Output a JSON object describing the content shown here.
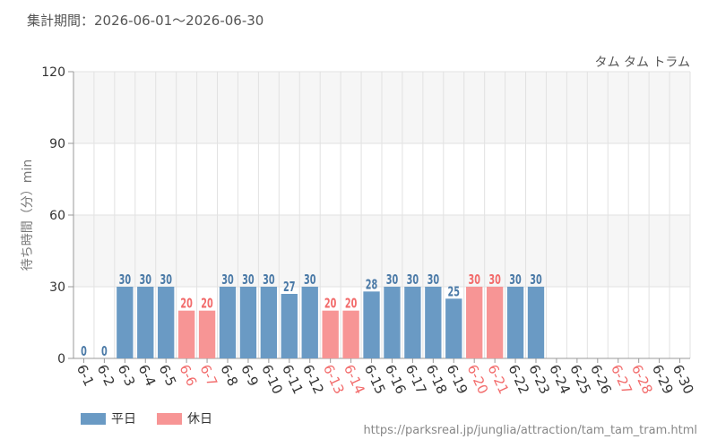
{
  "header": {
    "period_label": "集計期間：2026-06-01～2026-06-30"
  },
  "chart_data": {
    "type": "bar",
    "title": "タム タム トラム",
    "ylabel": "待ち時間（分）min",
    "ylim": [
      0,
      120
    ],
    "yticks": [
      0,
      30,
      60,
      90,
      120
    ],
    "grid": true,
    "categories": [
      "6-1",
      "6-2",
      "6-3",
      "6-4",
      "6-5",
      "6-6",
      "6-7",
      "6-8",
      "6-9",
      "6-10",
      "6-11",
      "6-12",
      "6-13",
      "6-14",
      "6-15",
      "6-16",
      "6-17",
      "6-18",
      "6-19",
      "6-20",
      "6-21",
      "6-22",
      "6-23",
      "6-24",
      "6-25",
      "6-26",
      "6-27",
      "6-28",
      "6-29",
      "6-30"
    ],
    "values": [
      0,
      0,
      30,
      30,
      30,
      20,
      20,
      30,
      30,
      30,
      27,
      30,
      20,
      20,
      28,
      30,
      30,
      30,
      25,
      30,
      30,
      30,
      30,
      null,
      null,
      null,
      null,
      null,
      null,
      null
    ],
    "holiday": [
      false,
      false,
      false,
      false,
      false,
      true,
      true,
      false,
      false,
      false,
      false,
      false,
      true,
      true,
      false,
      false,
      false,
      false,
      false,
      true,
      true,
      false,
      false,
      false,
      false,
      false,
      true,
      true,
      false,
      false
    ],
    "legend": [
      {
        "name": "平日",
        "color": "#6a9ac4"
      },
      {
        "name": "休日",
        "color": "#f79595"
      }
    ],
    "colors": {
      "weekday_bar": "#6a9ac4",
      "weekday_label": "#4b7aa7",
      "holiday_bar": "#f79595",
      "holiday_label": "#f26b6b",
      "band": "#f6f6f6",
      "grid": "#e2e2e2"
    }
  },
  "footer": {
    "source_url": "https://parksreal.jp/junglia/attraction/tam_tam_tram.html"
  }
}
